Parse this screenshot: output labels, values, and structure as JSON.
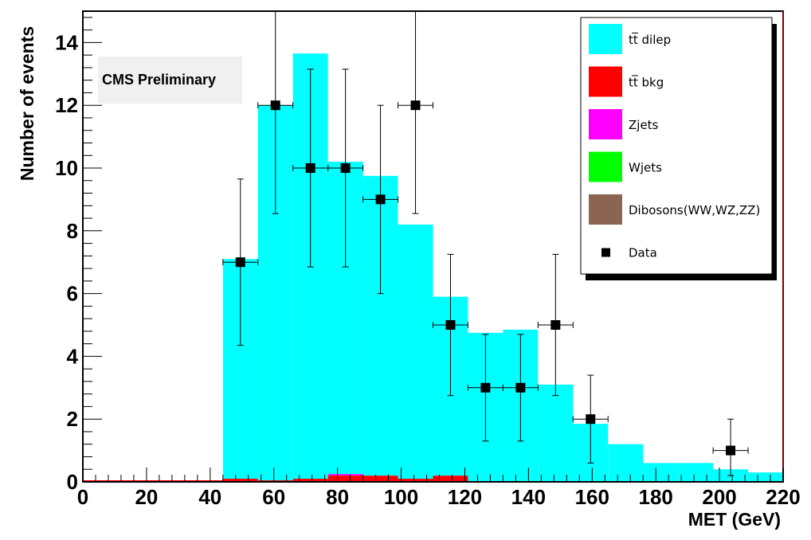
{
  "chart_data": {
    "type": "bar",
    "xlabel": "MET (GeV)",
    "ylabel": "Number of events",
    "xlim": [
      0,
      220
    ],
    "ylim": [
      0,
      15
    ],
    "x_ticks": [
      0,
      20,
      40,
      60,
      80,
      100,
      120,
      140,
      160,
      180,
      200,
      220
    ],
    "y_ticks": [
      0,
      2,
      4,
      6,
      8,
      10,
      12,
      14
    ],
    "bin_edges": [
      0,
      11,
      22,
      33,
      44,
      55,
      66,
      77,
      88,
      99,
      110,
      121,
      132,
      143,
      154,
      165,
      176,
      187,
      198,
      209,
      220
    ],
    "stack": [
      {
        "name": "tt̅ bkg",
        "color": "#ff0000",
        "values": [
          0.05,
          0.05,
          0.05,
          0.05,
          0.1,
          0.05,
          0.1,
          0.2,
          0.2,
          0.1,
          0.2,
          0,
          0,
          0,
          0,
          0,
          0,
          0,
          0,
          0
        ]
      },
      {
        "name": "Zjets",
        "color": "#ff00ff",
        "values": [
          0,
          0,
          0,
          0,
          0,
          0,
          0,
          0.05,
          0,
          0,
          0,
          0,
          0,
          0,
          0,
          0,
          0,
          0,
          0,
          0
        ]
      },
      {
        "name": "tt̅ dilep",
        "color": "#00ffff",
        "values": [
          0,
          0,
          0,
          0,
          7.0,
          11.95,
          13.55,
          9.95,
          9.55,
          8.1,
          5.7,
          4.75,
          4.85,
          3.1,
          1.85,
          1.2,
          0.6,
          0.6,
          0.4,
          0.3
        ]
      }
    ],
    "data_points": {
      "name": "Data",
      "x": [
        49.5,
        60.5,
        71.5,
        82.5,
        93.5,
        104.5,
        115.5,
        126.5,
        137.5,
        148.5,
        159.5,
        203.5
      ],
      "y": [
        7,
        12,
        10,
        10,
        9,
        12,
        5,
        3,
        3,
        5,
        2,
        1
      ],
      "err_low": [
        2.65,
        3.45,
        3.15,
        3.15,
        3.0,
        3.45,
        2.25,
        1.7,
        1.7,
        2.25,
        1.4,
        0.8
      ],
      "err_high": [
        2.65,
        3.45,
        3.15,
        3.15,
        3.0,
        3.45,
        2.25,
        1.7,
        1.7,
        2.25,
        1.4,
        1.0
      ]
    },
    "annotation": "CMS Preliminary",
    "legend": [
      {
        "label": "tt̅ dilep",
        "color": "#00ffff",
        "kind": "box"
      },
      {
        "label": "tt̅ bkg",
        "color": "#ff0000",
        "kind": "box"
      },
      {
        "label": "Zjets",
        "color": "#ff00ff",
        "kind": "box"
      },
      {
        "label": "Wjets",
        "color": "#00ff00",
        "kind": "box"
      },
      {
        "label": "Dibosons(WW,WZ,ZZ)",
        "color": "#8b6552",
        "kind": "box"
      },
      {
        "label": "Data",
        "color": "#000000",
        "kind": "marker"
      }
    ],
    "legend_position": "top-right",
    "grid": false
  }
}
